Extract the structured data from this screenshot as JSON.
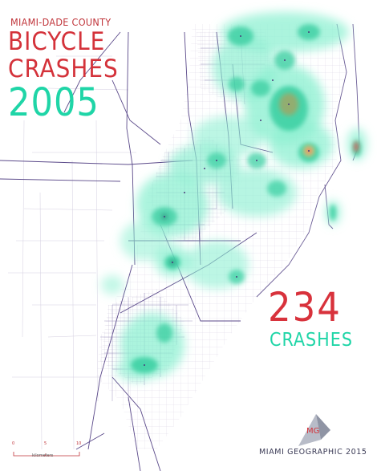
{
  "title": {
    "county": "MIAMI-DADE COUNTY",
    "line1": "BICYCLE",
    "line2": "CRASHES",
    "year": "2005"
  },
  "stats": {
    "count": "234",
    "count_label": "CRASHES"
  },
  "scale_bar": {
    "ticks": [
      "0",
      "5",
      "10"
    ],
    "unit": "kilometers"
  },
  "logo": {
    "letters": "MG"
  },
  "credit": "MIAMI GEOGRAPHIC 2015",
  "colors": {
    "title_red": "#d4323a",
    "accent_teal": "#1fd5a7",
    "heat_low": "#8ff0d2",
    "heat_mid": "#3fd0a4",
    "heat_high": "#e8c070",
    "heat_peak": "#e05a5a",
    "road_major": "#5b4a8a",
    "road_minor": "#b8b2cc"
  },
  "legend_layers": [
    "crash density heatmap",
    "road network",
    "coastline"
  ]
}
